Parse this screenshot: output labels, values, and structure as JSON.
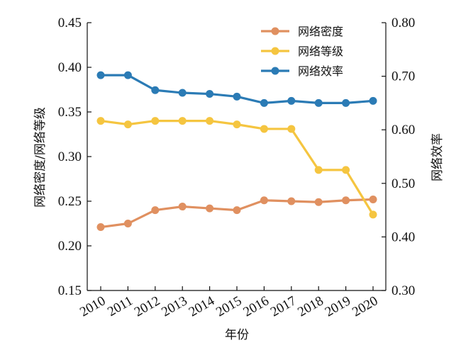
{
  "chart_data": {
    "type": "line",
    "title": "",
    "xlabel": "年份",
    "ylabel_left": "网络密度/网络等级",
    "ylabel_right": "网络效率",
    "categories": [
      "2010",
      "2011",
      "2012",
      "2013",
      "2014",
      "2015",
      "2016",
      "2017",
      "2018",
      "2019",
      "2020"
    ],
    "ylim_left": [
      0.15,
      0.45
    ],
    "yticks_left": [
      "0.15",
      "0.20",
      "0.25",
      "0.30",
      "0.35",
      "0.40",
      "0.45"
    ],
    "ylim_right": [
      0.3,
      0.8
    ],
    "yticks_right": [
      "0.30",
      "0.40",
      "0.50",
      "0.60",
      "0.70",
      "0.80"
    ],
    "grid": false,
    "legend_position": "top-right",
    "series": [
      {
        "name": "网络密度",
        "axis": "left",
        "color": "#E09060",
        "values": [
          0.221,
          0.225,
          0.24,
          0.244,
          0.242,
          0.24,
          0.251,
          0.25,
          0.249,
          0.251,
          0.252
        ]
      },
      {
        "name": "网络等级",
        "axis": "left",
        "color": "#F5C540",
        "values": [
          0.34,
          0.336,
          0.34,
          0.34,
          0.34,
          0.336,
          0.331,
          0.331,
          0.285,
          0.285,
          0.235
        ]
      },
      {
        "name": "网络效率",
        "axis": "right",
        "color": "#2B7BB5",
        "values": [
          0.702,
          0.702,
          0.674,
          0.669,
          0.667,
          0.662,
          0.65,
          0.654,
          0.65,
          0.65,
          0.654
        ]
      }
    ]
  }
}
